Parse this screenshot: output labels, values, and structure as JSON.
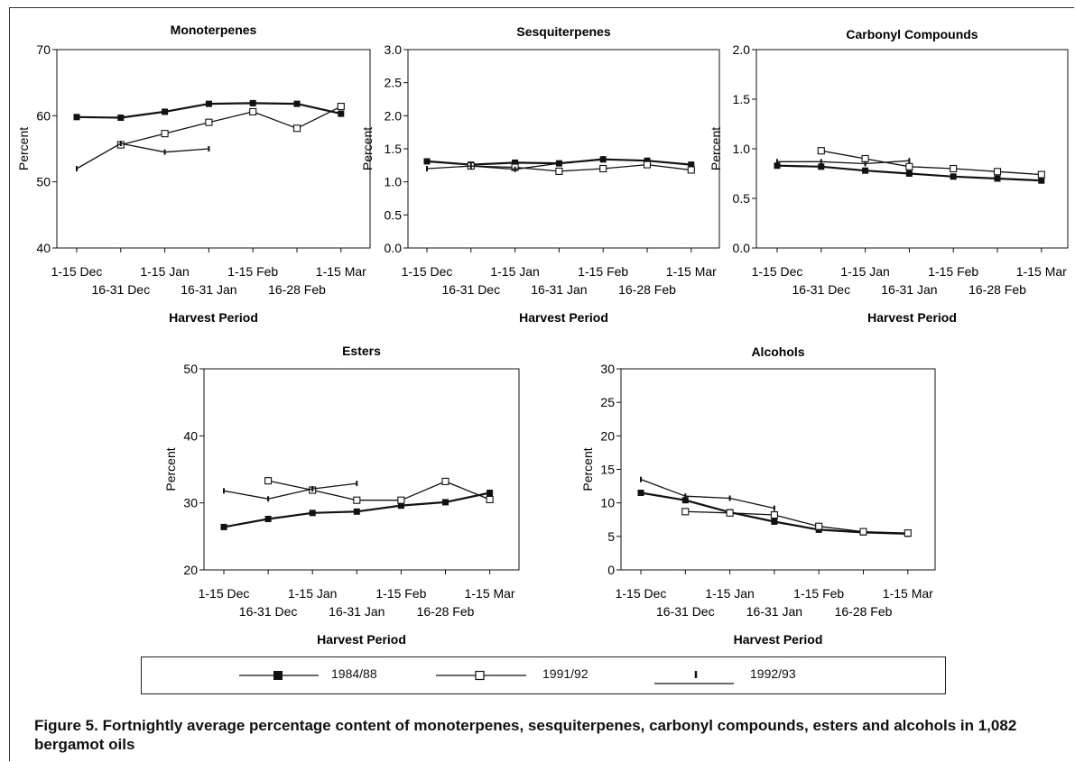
{
  "caption": "Figure 5. Fortnightly average percentage content of monoterpenes, sesquiterpenes, carbonyl compounds, esters and alcohols in 1,082 bergamot oils",
  "legend": [
    {
      "name": "1984/88",
      "marker": "filled-square"
    },
    {
      "name": "1991/92",
      "marker": "open-square"
    },
    {
      "name": "1992/93",
      "marker": "tick"
    }
  ],
  "chart_data": [
    {
      "type": "line",
      "title": "Monoterpenes",
      "xlabel": "Harvest Period",
      "ylabel": "Percent",
      "x": [
        "1-15 Dec",
        "16-31 Dec",
        "1-15 Jan",
        "16-31 Jan",
        "1-15 Feb",
        "16-28 Feb",
        "1-15 Mar"
      ],
      "ylim": [
        40,
        70
      ],
      "yticks": [
        "40",
        "50",
        "60",
        "70"
      ],
      "series": [
        {
          "name": "1984/88",
          "values": [
            59.8,
            59.7,
            60.6,
            61.8,
            61.9,
            61.8,
            60.3
          ]
        },
        {
          "name": "1991/92",
          "values": [
            null,
            55.6,
            57.3,
            59.0,
            60.6,
            58.1,
            61.4
          ]
        },
        {
          "name": "1992/93",
          "values": [
            52.0,
            55.8,
            54.5,
            55.0,
            null,
            null,
            null
          ]
        }
      ]
    },
    {
      "type": "line",
      "title": "Sesquiterpenes",
      "xlabel": "Harvest Period",
      "ylabel": "Percent",
      "x": [
        "1-15 Dec",
        "16-31 Dec",
        "1-15 Jan",
        "16-31 Jan",
        "1-15 Feb",
        "16-28 Feb",
        "1-15 Mar"
      ],
      "ylim": [
        0,
        3
      ],
      "yticks": [
        "0.0",
        "0.5",
        "1.0",
        "1.5",
        "2.0",
        "2.5",
        "3.0"
      ],
      "series": [
        {
          "name": "1984/88",
          "values": [
            1.31,
            1.26,
            1.29,
            1.28,
            1.34,
            1.32,
            1.26
          ]
        },
        {
          "name": "1991/92",
          "values": [
            null,
            1.24,
            1.22,
            1.16,
            1.2,
            1.26,
            1.18
          ]
        },
        {
          "name": "1992/93",
          "values": [
            1.2,
            1.24,
            1.19,
            1.28,
            1.35,
            null,
            null
          ]
        }
      ]
    },
    {
      "type": "line",
      "title": "Carbonyl Compounds",
      "xlabel": "Harvest Period",
      "ylabel": "Percent",
      "x": [
        "1-15 Dec",
        "16-31 Dec",
        "1-15 Jan",
        "16-31 Jan",
        "1-15 Feb",
        "16-28 Feb",
        "1-15 Mar"
      ],
      "ylim": [
        0,
        2
      ],
      "yticks": [
        "0.0",
        "0.5",
        "1.0",
        "1.5",
        "2.0"
      ],
      "series": [
        {
          "name": "1984/88",
          "values": [
            0.83,
            0.82,
            0.78,
            0.75,
            0.72,
            0.7,
            0.68
          ]
        },
        {
          "name": "1991/92",
          "values": [
            null,
            0.98,
            0.9,
            0.82,
            0.8,
            0.77,
            0.74
          ]
        },
        {
          "name": "1992/93",
          "values": [
            0.87,
            0.87,
            0.85,
            0.88,
            null,
            null,
            null
          ]
        }
      ]
    },
    {
      "type": "line",
      "title": "Esters",
      "xlabel": "Harvest Period",
      "ylabel": "Percent",
      "x": [
        "1-15 Dec",
        "16-31 Dec",
        "1-15 Jan",
        "16-31 Jan",
        "1-15 Feb",
        "16-28 Feb",
        "1-15 Mar"
      ],
      "ylim": [
        20,
        50
      ],
      "yticks": [
        "20",
        "30",
        "40",
        "50"
      ],
      "series": [
        {
          "name": "1984/88",
          "values": [
            26.4,
            27.6,
            28.5,
            28.7,
            29.6,
            30.1,
            31.5
          ]
        },
        {
          "name": "1991/92",
          "values": [
            null,
            33.3,
            31.9,
            30.4,
            30.4,
            33.2,
            30.5
          ]
        },
        {
          "name": "1992/93",
          "values": [
            31.8,
            30.6,
            32.1,
            32.9,
            null,
            null,
            null
          ]
        }
      ]
    },
    {
      "type": "line",
      "title": "Alcohols",
      "xlabel": "Harvest Period",
      "ylabel": "Percent",
      "x": [
        "1-15 Dec",
        "16-31 Dec",
        "1-15 Jan",
        "16-31 Jan",
        "1-15 Feb",
        "16-28 Feb",
        "1-15 Mar"
      ],
      "ylim": [
        0,
        30
      ],
      "yticks": [
        "0",
        "5",
        "10",
        "15",
        "20",
        "25",
        "30"
      ],
      "series": [
        {
          "name": "1984/88",
          "values": [
            11.5,
            10.4,
            8.6,
            7.2,
            6.0,
            5.6,
            5.4
          ]
        },
        {
          "name": "1991/92",
          "values": [
            null,
            8.7,
            8.5,
            8.2,
            6.5,
            5.7,
            5.5
          ]
        },
        {
          "name": "1992/93",
          "values": [
            13.5,
            11.0,
            10.7,
            9.2,
            null,
            null,
            null
          ]
        }
      ]
    }
  ]
}
